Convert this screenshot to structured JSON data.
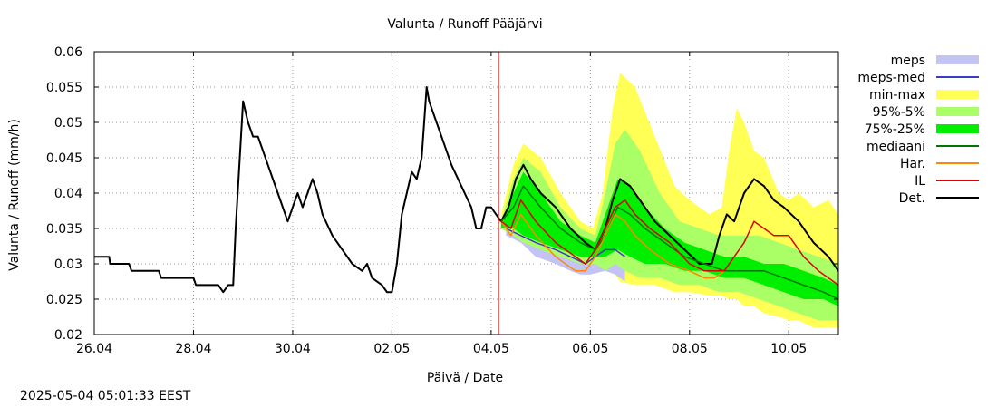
{
  "chart_data": {
    "type": "line",
    "title": "Valunta / Runoff  Pääjärvi",
    "xlabel": "Päivä / Date",
    "ylabel": "Valunta / Runoff (mm/h)",
    "timestamp": "2025-05-04 05:01:33 EEST",
    "x_unit": "days since 26.04 00:00",
    "xlim": [
      0,
      15
    ],
    "ylim": [
      0.02,
      0.06
    ],
    "grid": true,
    "legend_position": "right",
    "x_ticks": [
      {
        "x": 0,
        "label": "26.04"
      },
      {
        "x": 2,
        "label": "28.04"
      },
      {
        "x": 4,
        "label": "30.04"
      },
      {
        "x": 6,
        "label": "02.05"
      },
      {
        "x": 8,
        "label": "04.05"
      },
      {
        "x": 10,
        "label": "06.05"
      },
      {
        "x": 12,
        "label": "08.05"
      },
      {
        "x": 14,
        "label": "10.05"
      }
    ],
    "y_ticks": [
      {
        "y": 0.02,
        "label": "0.02"
      },
      {
        "y": 0.025,
        "label": "0.025"
      },
      {
        "y": 0.03,
        "label": "0.03"
      },
      {
        "y": 0.035,
        "label": "0.035"
      },
      {
        "y": 0.04,
        "label": "0.04"
      },
      {
        "y": 0.045,
        "label": "0.045"
      },
      {
        "y": 0.05,
        "label": "0.05"
      },
      {
        "y": 0.055,
        "label": "0.055"
      },
      {
        "y": 0.06,
        "label": "0.06"
      }
    ],
    "now_x": 8.15,
    "legend": [
      {
        "label": "meps",
        "kind": "band",
        "color": "#c4c4f4"
      },
      {
        "label": "meps-med",
        "kind": "line",
        "color": "#3b3bc8"
      },
      {
        "label": "min-max",
        "kind": "band",
        "color": "#ffff55"
      },
      {
        "label": "95%-5%",
        "kind": "band",
        "color": "#aaff66"
      },
      {
        "label": "75%-25%",
        "kind": "band",
        "color": "#00ee00"
      },
      {
        "label": "mediaani",
        "kind": "line",
        "color": "#007700"
      },
      {
        "label": "Har.",
        "kind": "line",
        "color": "#ff8800"
      },
      {
        "label": "IL",
        "kind": "line",
        "color": "#dd0000"
      },
      {
        "label": "Det.",
        "kind": "line",
        "color": "#000000"
      }
    ],
    "bands": [
      {
        "name": "min-max",
        "color": "#ffff55",
        "x": [
          8.2,
          8.45,
          8.65,
          9.0,
          9.4,
          9.8,
          10.05,
          10.25,
          10.45,
          10.6,
          10.9,
          11.3,
          11.7,
          12.0,
          12.4,
          12.65,
          12.8,
          12.95,
          13.1,
          13.3,
          13.5,
          13.8,
          14.0,
          14.2,
          14.5,
          14.8,
          15.0
        ],
        "upper": [
          0.037,
          0.044,
          0.047,
          0.045,
          0.04,
          0.036,
          0.035,
          0.04,
          0.052,
          0.057,
          0.055,
          0.048,
          0.041,
          0.039,
          0.037,
          0.038,
          0.046,
          0.052,
          0.05,
          0.046,
          0.045,
          0.04,
          0.039,
          0.04,
          0.038,
          0.039,
          0.037
        ],
        "lower": [
          0.035,
          0.034,
          0.033,
          0.032,
          0.031,
          0.0295,
          0.029,
          0.029,
          0.029,
          0.0275,
          0.027,
          0.027,
          0.026,
          0.026,
          0.0255,
          0.0255,
          0.025,
          0.025,
          0.024,
          0.024,
          0.023,
          0.0225,
          0.022,
          0.022,
          0.021,
          0.021,
          0.021
        ]
      },
      {
        "name": "meps",
        "color": "#c4c4f4",
        "x": [
          8.3,
          8.6,
          8.9,
          9.3,
          9.6,
          9.8,
          10.0,
          10.3,
          10.5,
          10.7
        ],
        "upper": [
          0.036,
          0.036,
          0.035,
          0.033,
          0.032,
          0.032,
          0.033,
          0.034,
          0.034,
          0.034
        ],
        "lower": [
          0.034,
          0.033,
          0.031,
          0.03,
          0.029,
          0.0285,
          0.0285,
          0.029,
          0.0285,
          0.0275
        ]
      },
      {
        "name": "95%-5%",
        "color": "#aaff66",
        "x": [
          8.2,
          8.45,
          8.65,
          9.0,
          9.4,
          9.8,
          10.1,
          10.3,
          10.5,
          10.7,
          11.0,
          11.4,
          11.8,
          12.2,
          12.6,
          13.0,
          13.4,
          13.8,
          14.2,
          14.6,
          15.0
        ],
        "upper": [
          0.036,
          0.042,
          0.045,
          0.043,
          0.038,
          0.035,
          0.034,
          0.04,
          0.047,
          0.049,
          0.046,
          0.04,
          0.036,
          0.035,
          0.034,
          0.034,
          0.034,
          0.033,
          0.032,
          0.031,
          0.03
        ],
        "lower": [
          0.035,
          0.034,
          0.033,
          0.032,
          0.031,
          0.03,
          0.03,
          0.029,
          0.03,
          0.029,
          0.028,
          0.028,
          0.027,
          0.027,
          0.026,
          0.026,
          0.025,
          0.024,
          0.023,
          0.022,
          0.022
        ]
      },
      {
        "name": "75%-25%",
        "color": "#00ee00",
        "x": [
          8.2,
          8.45,
          8.65,
          9.0,
          9.4,
          9.8,
          10.1,
          10.3,
          10.55,
          10.8,
          11.1,
          11.5,
          11.9,
          12.3,
          12.7,
          13.1,
          13.5,
          13.9,
          14.3,
          14.7,
          15.0
        ],
        "upper": [
          0.036,
          0.04,
          0.043,
          0.04,
          0.036,
          0.034,
          0.033,
          0.037,
          0.042,
          0.041,
          0.038,
          0.035,
          0.033,
          0.032,
          0.031,
          0.031,
          0.03,
          0.03,
          0.029,
          0.028,
          0.027
        ],
        "lower": [
          0.035,
          0.035,
          0.034,
          0.033,
          0.032,
          0.031,
          0.031,
          0.031,
          0.032,
          0.031,
          0.03,
          0.03,
          0.029,
          0.029,
          0.028,
          0.028,
          0.027,
          0.026,
          0.025,
          0.025,
          0.024
        ]
      }
    ],
    "series": [
      {
        "name": "Det.",
        "color": "#000000",
        "width": 2,
        "x": [
          0.0,
          0.3,
          0.32,
          0.7,
          0.75,
          1.3,
          1.35,
          2.0,
          2.05,
          2.5,
          2.6,
          2.7,
          2.8,
          2.85,
          2.95,
          3.0,
          3.1,
          3.2,
          3.3,
          3.5,
          3.7,
          3.9,
          4.0,
          4.1,
          4.2,
          4.3,
          4.4,
          4.5,
          4.6,
          4.8,
          5.0,
          5.2,
          5.4,
          5.5,
          5.6,
          5.8,
          5.9,
          6.0,
          6.1,
          6.2,
          6.3,
          6.4,
          6.5,
          6.6,
          6.7,
          6.75,
          6.85,
          7.0,
          7.2,
          7.4,
          7.6,
          7.7,
          7.8,
          7.9,
          8.0,
          8.1,
          8.2
        ],
        "y": [
          0.031,
          0.031,
          0.03,
          0.03,
          0.029,
          0.029,
          0.028,
          0.028,
          0.027,
          0.027,
          0.026,
          0.027,
          0.027,
          0.035,
          0.047,
          0.053,
          0.05,
          0.048,
          0.048,
          0.044,
          0.04,
          0.036,
          0.038,
          0.04,
          0.038,
          0.04,
          0.042,
          0.04,
          0.037,
          0.034,
          0.032,
          0.03,
          0.029,
          0.03,
          0.028,
          0.027,
          0.026,
          0.026,
          0.03,
          0.037,
          0.04,
          0.043,
          0.042,
          0.045,
          0.055,
          0.053,
          0.051,
          0.048,
          0.044,
          0.041,
          0.038,
          0.035,
          0.035,
          0.038,
          0.038,
          0.037,
          0.036
        ]
      },
      {
        "name": "Det.",
        "color": "#000000",
        "width": 2,
        "x": [
          8.2,
          8.35,
          8.5,
          8.65,
          8.8,
          9.0,
          9.3,
          9.6,
          9.9,
          10.1,
          10.3,
          10.45,
          10.6,
          10.8,
          11.0,
          11.3,
          11.6,
          11.9,
          12.2,
          12.45,
          12.6,
          12.75,
          12.9,
          13.1,
          13.3,
          13.5,
          13.7,
          13.9,
          14.2,
          14.5,
          14.8,
          15.0
        ],
        "y": [
          0.036,
          0.038,
          0.042,
          0.044,
          0.042,
          0.04,
          0.038,
          0.035,
          0.033,
          0.032,
          0.035,
          0.039,
          0.042,
          0.041,
          0.039,
          0.036,
          0.034,
          0.032,
          0.03,
          0.03,
          0.034,
          0.037,
          0.036,
          0.04,
          0.042,
          0.041,
          0.039,
          0.038,
          0.036,
          0.033,
          0.031,
          0.029
        ]
      },
      {
        "name": "mediaani",
        "color": "#007700",
        "width": 1.5,
        "x": [
          8.2,
          8.45,
          8.65,
          9.0,
          9.4,
          9.8,
          10.1,
          10.3,
          10.55,
          10.8,
          11.1,
          11.5,
          11.9,
          12.3,
          12.7,
          13.1,
          13.5,
          13.9,
          14.3,
          14.7,
          15.0
        ],
        "y": [
          0.036,
          0.038,
          0.041,
          0.038,
          0.035,
          0.033,
          0.032,
          0.034,
          0.038,
          0.037,
          0.035,
          0.033,
          0.031,
          0.03,
          0.029,
          0.029,
          0.029,
          0.028,
          0.027,
          0.026,
          0.025
        ]
      },
      {
        "name": "meps-med",
        "color": "#3b3bc8",
        "width": 1.5,
        "x": [
          8.3,
          8.6,
          8.9,
          9.3,
          9.6,
          9.9,
          10.1,
          10.3,
          10.5,
          10.7
        ],
        "y": [
          0.035,
          0.034,
          0.033,
          0.032,
          0.031,
          0.03,
          0.031,
          0.032,
          0.032,
          0.031
        ]
      },
      {
        "name": "Har.",
        "color": "#ff8800",
        "width": 1.5,
        "x": [
          8.2,
          8.4,
          8.6,
          8.9,
          9.3,
          9.7,
          9.9,
          10.1,
          10.3,
          10.5,
          10.7,
          10.9,
          11.2,
          11.6,
          12.0,
          12.3,
          12.5,
          12.7
        ],
        "y": [
          0.036,
          0.034,
          0.037,
          0.034,
          0.031,
          0.029,
          0.029,
          0.031,
          0.034,
          0.037,
          0.036,
          0.034,
          0.032,
          0.03,
          0.029,
          0.028,
          0.028,
          0.029
        ]
      },
      {
        "name": "IL",
        "color": "#dd0000",
        "width": 1.5,
        "x": [
          8.2,
          8.4,
          8.6,
          8.9,
          9.3,
          9.7,
          9.9,
          10.1,
          10.3,
          10.5,
          10.7,
          10.9,
          11.2,
          11.6,
          12.0,
          12.3,
          12.5,
          12.7,
          12.9,
          13.1,
          13.3,
          13.5,
          13.7,
          14.0,
          14.3,
          14.6,
          14.8,
          15.0
        ],
        "y": [
          0.036,
          0.035,
          0.039,
          0.036,
          0.033,
          0.031,
          0.03,
          0.032,
          0.035,
          0.038,
          0.039,
          0.037,
          0.035,
          0.033,
          0.03,
          0.029,
          0.029,
          0.029,
          0.031,
          0.033,
          0.036,
          0.035,
          0.034,
          0.034,
          0.031,
          0.029,
          0.028,
          0.027
        ]
      }
    ]
  }
}
